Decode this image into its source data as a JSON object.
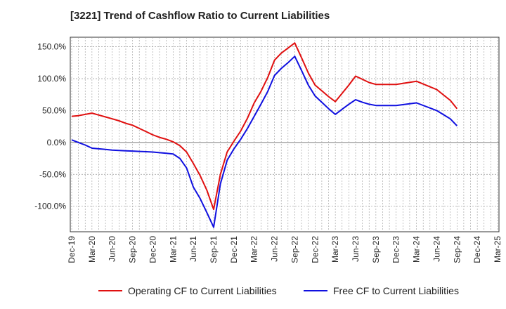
{
  "chart_data": {
    "type": "line",
    "title": "[3221]  Trend of Cashflow Ratio to Current Liabilities",
    "xlabel": "",
    "ylabel": "",
    "x_ticks": [
      "Dec-19",
      "Mar-20",
      "Jun-20",
      "Sep-20",
      "Dec-20",
      "Mar-21",
      "Jun-21",
      "Sep-21",
      "Dec-21",
      "Mar-22",
      "Jun-22",
      "Sep-22",
      "Dec-22",
      "Mar-23",
      "Jun-23",
      "Sep-23",
      "Dec-23",
      "Mar-24",
      "Jun-24",
      "Sep-24",
      "Dec-24",
      "Mar-25"
    ],
    "y_ticks": [
      "150.0%",
      "100.0%",
      "50.0%",
      "0.0%",
      "-50.0%",
      "-100.0%"
    ],
    "ylim": [
      -140,
      165
    ],
    "y_tick_values": [
      150,
      100,
      50,
      0,
      -50,
      -100
    ],
    "grid": true,
    "legend_position": "bottom",
    "series": [
      {
        "name": "Operating CF to Current Liabilities",
        "color": "#e01010",
        "points": [
          [
            "Dec-19",
            41
          ],
          [
            "Jan-20",
            42
          ],
          [
            "Feb-20",
            44
          ],
          [
            "Mar-20",
            46
          ],
          [
            "Apr-20",
            43
          ],
          [
            "May-20",
            40
          ],
          [
            "Jun-20",
            37
          ],
          [
            "Jul-20",
            34
          ],
          [
            "Aug-20",
            30
          ],
          [
            "Sep-20",
            27
          ],
          [
            "Oct-20",
            22
          ],
          [
            "Nov-20",
            17
          ],
          [
            "Dec-20",
            12
          ],
          [
            "Jan-21",
            8
          ],
          [
            "Feb-21",
            5
          ],
          [
            "Mar-21",
            1
          ],
          [
            "Apr-21",
            -5
          ],
          [
            "May-21",
            -15
          ],
          [
            "Jun-21",
            -33
          ],
          [
            "Jul-21",
            -52
          ],
          [
            "Aug-21",
            -75
          ],
          [
            "Sep-21",
            -105
          ],
          [
            "Oct-21",
            -50
          ],
          [
            "Nov-21",
            -15
          ],
          [
            "Dec-21",
            2
          ],
          [
            "Jan-22",
            18
          ],
          [
            "Feb-22",
            38
          ],
          [
            "Mar-22",
            62
          ],
          [
            "Apr-22",
            80
          ],
          [
            "May-22",
            102
          ],
          [
            "Jun-22",
            129
          ],
          [
            "Jul-22",
            140
          ],
          [
            "Aug-22",
            148
          ],
          [
            "Sep-22",
            156
          ],
          [
            "Oct-22",
            133
          ],
          [
            "Nov-22",
            109
          ],
          [
            "Dec-22",
            90
          ],
          [
            "Jan-23",
            81
          ],
          [
            "Feb-23",
            72
          ],
          [
            "Mar-23",
            64
          ],
          [
            "Apr-23",
            77
          ],
          [
            "May-23",
            90
          ],
          [
            "Jun-23",
            104
          ],
          [
            "Jul-23",
            99
          ],
          [
            "Aug-23",
            94
          ],
          [
            "Sep-23",
            91
          ],
          [
            "Dec-23",
            91
          ],
          [
            "Mar-24",
            96
          ],
          [
            "Jun-24",
            83
          ],
          [
            "Aug-24",
            66
          ],
          [
            "Sep-24",
            53
          ]
        ]
      },
      {
        "name": "Free CF to Current Liabilities",
        "color": "#1010e0",
        "points": [
          [
            "Dec-19",
            4
          ],
          [
            "Jan-20",
            0
          ],
          [
            "Feb-20",
            -4
          ],
          [
            "Mar-20",
            -9
          ],
          [
            "Apr-20",
            -10
          ],
          [
            "May-20",
            -11
          ],
          [
            "Jun-20",
            -12
          ],
          [
            "Jul-20",
            -12.5
          ],
          [
            "Aug-20",
            -13
          ],
          [
            "Sep-20",
            -13.5
          ],
          [
            "Oct-20",
            -14
          ],
          [
            "Nov-20",
            -14.5
          ],
          [
            "Dec-20",
            -15
          ],
          [
            "Jan-21",
            -16
          ],
          [
            "Feb-21",
            -17
          ],
          [
            "Mar-21",
            -18
          ],
          [
            "Apr-21",
            -25
          ],
          [
            "May-21",
            -40
          ],
          [
            "Jun-21",
            -70
          ],
          [
            "Jul-21",
            -88
          ],
          [
            "Aug-21",
            -110
          ],
          [
            "Sep-21",
            -133
          ],
          [
            "Oct-21",
            -65
          ],
          [
            "Nov-21",
            -28
          ],
          [
            "Dec-21",
            -10
          ],
          [
            "Jan-22",
            5
          ],
          [
            "Feb-22",
            22
          ],
          [
            "Mar-22",
            41
          ],
          [
            "Apr-22",
            60
          ],
          [
            "May-22",
            80
          ],
          [
            "Jun-22",
            105
          ],
          [
            "Jul-22",
            116
          ],
          [
            "Aug-22",
            125
          ],
          [
            "Sep-22",
            135
          ],
          [
            "Oct-22",
            113
          ],
          [
            "Nov-22",
            90
          ],
          [
            "Dec-22",
            73
          ],
          [
            "Jan-23",
            63
          ],
          [
            "Feb-23",
            53
          ],
          [
            "Mar-23",
            44
          ],
          [
            "Apr-23",
            52
          ],
          [
            "May-23",
            60
          ],
          [
            "Jun-23",
            67
          ],
          [
            "Jul-23",
            63
          ],
          [
            "Aug-23",
            60
          ],
          [
            "Sep-23",
            58
          ],
          [
            "Dec-23",
            58
          ],
          [
            "Mar-24",
            62
          ],
          [
            "Jun-24",
            50
          ],
          [
            "Aug-24",
            37
          ],
          [
            "Sep-24",
            26
          ]
        ]
      }
    ]
  }
}
